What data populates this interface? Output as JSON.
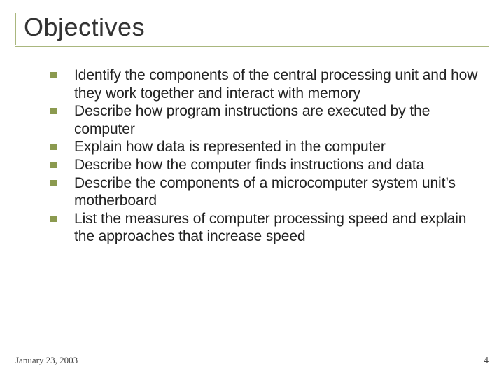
{
  "slide": {
    "title": "Objectives",
    "bullets": [
      "Identify the components of the central processing unit and how they work together and interact with memory",
      "Describe how program instructions are executed by the computer",
      "Explain how data is represented in the computer",
      "Describe how the computer finds instructions and data",
      "Describe the components of a microcomputer system unit’s motherboard",
      "List the measures of computer processing speed and explain the approaches that increase speed"
    ],
    "footer_date": "January 23, 2003",
    "page_number": "4"
  },
  "style": {
    "background_color": "#ffffff",
    "title_color": "#333333",
    "title_fontsize": 36,
    "title_rule_color": "#aab77e",
    "bullet_text_color": "#222222",
    "bullet_fontsize": 21,
    "bullet_marker_color": "#8b9a4f",
    "bullet_marker_size": 9,
    "footer_color": "#444444",
    "footer_fontsize": 13
  }
}
